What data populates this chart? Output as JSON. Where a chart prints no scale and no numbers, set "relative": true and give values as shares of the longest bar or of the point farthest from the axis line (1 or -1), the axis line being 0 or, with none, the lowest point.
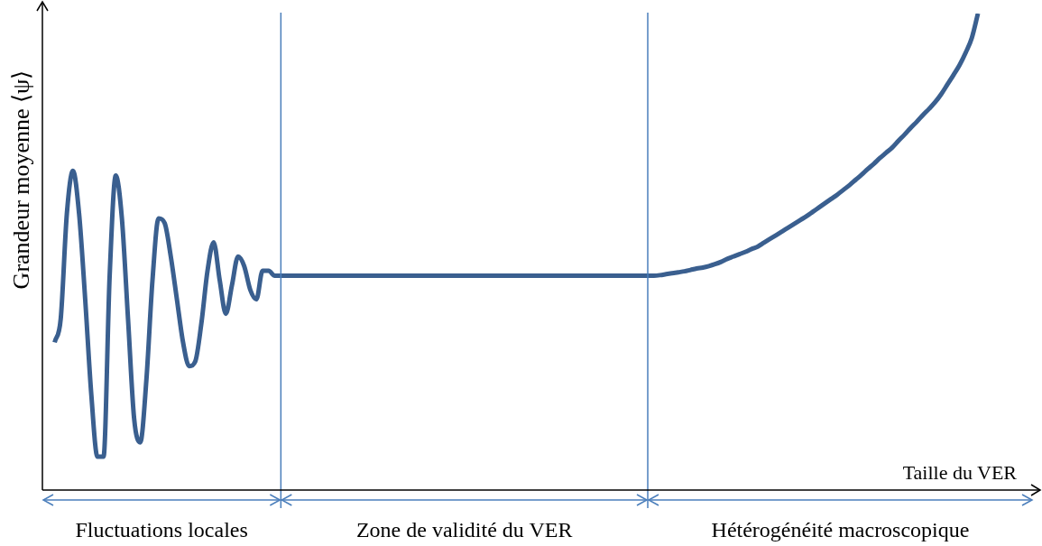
{
  "chart_data": {
    "type": "line",
    "relative": true,
    "xlabel": "Taille du VER",
    "ylabel": "Grandeur moyenne ⟨ψ⟩",
    "categories": [
      null,
      null,
      null,
      null,
      null,
      null,
      null,
      null,
      null,
      null,
      null,
      null,
      null,
      null,
      null,
      null,
      null,
      null,
      null,
      null,
      null,
      null,
      null,
      null,
      null,
      null,
      null,
      null,
      null,
      null,
      null,
      null,
      null,
      null,
      null,
      null,
      null,
      null,
      null,
      null,
      null,
      null,
      null,
      null,
      null,
      null,
      null,
      null,
      null,
      null,
      null,
      null,
      null,
      null,
      null,
      null,
      null,
      null,
      null,
      null,
      null,
      null,
      null,
      null,
      null,
      null,
      null,
      null,
      null,
      null,
      null,
      null,
      null,
      null,
      null,
      null,
      null,
      null,
      null,
      null,
      null,
      null,
      null,
      null,
      null,
      null,
      null,
      null,
      null,
      null,
      null,
      null,
      null,
      null,
      null,
      null,
      null,
      null,
      null,
      null,
      null,
      null,
      null,
      null,
      null,
      null,
      null,
      null,
      null,
      null,
      null,
      null,
      null,
      null,
      null,
      null,
      null,
      null,
      null,
      null,
      null,
      null,
      null,
      null,
      null,
      null,
      null,
      null,
      null,
      null,
      null,
      null,
      null,
      null,
      null,
      null,
      null,
      null,
      null,
      null,
      null,
      null,
      null,
      null,
      null,
      null,
      null,
      null,
      null,
      null,
      null,
      null,
      null,
      null,
      null,
      null,
      null,
      null,
      null,
      null,
      null,
      null,
      null
    ],
    "series": [
      {
        "color": "#3a5f8f",
        "values": [
          null,
          null,
          0.31,
          0.36,
          0.58,
          0.67,
          0.58,
          0.4,
          0.2,
          0.07,
          0.07,
          0.45,
          0.66,
          0.57,
          0.36,
          0.15,
          0.1,
          0.23,
          0.44,
          0.57,
          0.56,
          0.49,
          0.4,
          0.31,
          0.26,
          0.27,
          0.35,
          0.46,
          0.52,
          0.44,
          0.37,
          0.43,
          0.49,
          0.47,
          0.42,
          0.4,
          0.46,
          0.46,
          0.45,
          0.45,
          0.45,
          0.45,
          0.45,
          0.45,
          0.45,
          0.45,
          0.45,
          0.45,
          0.45,
          0.45,
          0.45,
          0.45,
          0.45,
          0.45,
          0.45,
          0.45,
          0.45,
          0.45,
          0.45,
          0.45,
          0.45,
          0.45,
          0.45,
          0.45,
          0.45,
          0.45,
          0.45,
          0.45,
          0.45,
          0.45,
          0.45,
          0.45,
          0.45,
          0.45,
          0.45,
          0.45,
          0.45,
          0.45,
          0.45,
          0.45,
          0.45,
          0.45,
          0.45,
          0.45,
          0.45,
          0.45,
          0.45,
          0.45,
          0.45,
          0.45,
          0.45,
          0.45,
          0.45,
          0.45,
          0.45,
          0.45,
          0.45,
          0.45,
          0.45,
          0.45,
          0.45,
          0.451,
          0.453,
          0.455,
          0.457,
          0.459,
          0.462,
          0.465,
          0.467,
          0.47,
          0.474,
          0.479,
          0.485,
          0.49,
          0.495,
          0.5,
          0.506,
          0.511,
          0.519,
          0.527,
          0.535,
          0.543,
          0.551,
          0.559,
          0.567,
          0.575,
          0.584,
          0.593,
          0.602,
          0.611,
          0.62,
          0.63,
          0.64,
          0.651,
          0.662,
          0.674,
          0.685,
          0.697,
          0.708,
          0.719,
          0.733,
          0.746,
          0.76,
          0.773,
          0.787,
          0.8,
          0.814,
          0.831,
          0.851,
          0.871,
          0.892,
          0.918,
          0.949,
          1.0,
          null,
          null,
          null,
          null,
          null,
          null,
          null,
          null,
          null
        ]
      }
    ],
    "annotations": [
      "Fluctuations locales",
      "Zone de validité du VER",
      "Hétérogénéité macroscopique"
    ],
    "legend": false,
    "marker": "none",
    "line_style": "solid"
  }
}
